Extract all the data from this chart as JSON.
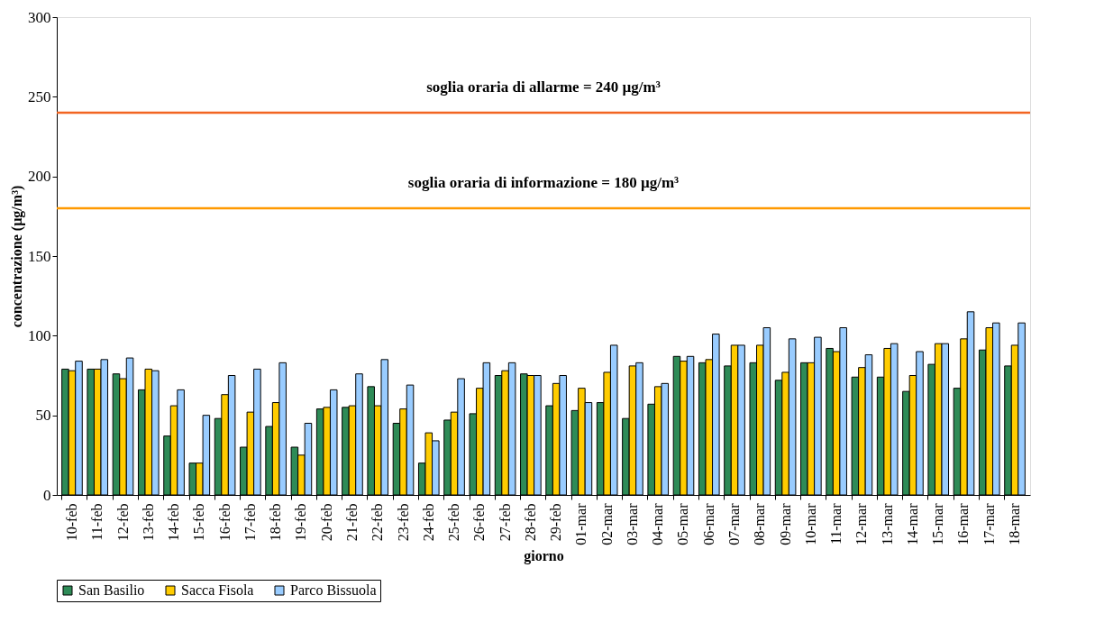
{
  "chart_data": {
    "type": "bar",
    "xlabel": "giorno",
    "ylabel": "concentrazione (µg/m³)",
    "categories": [
      "10-feb",
      "11-feb",
      "12-feb",
      "13-feb",
      "14-feb",
      "15-feb",
      "16-feb",
      "17-feb",
      "18-feb",
      "19-feb",
      "20-feb",
      "21-feb",
      "22-feb",
      "23-feb",
      "24-feb",
      "25-feb",
      "26-feb",
      "27-feb",
      "28-feb",
      "29-feb",
      "01-mar",
      "02-mar",
      "03-mar",
      "04-mar",
      "05-mar",
      "06-mar",
      "07-mar",
      "08-mar",
      "09-mar",
      "10-mar",
      "11-mar",
      "12-mar",
      "13-mar",
      "14-mar",
      "15-mar",
      "16-mar",
      "17-mar",
      "18-mar"
    ],
    "series": [
      {
        "name": "San Basilio",
        "color": "#2e8b57",
        "values": [
          79,
          79,
          76,
          66,
          37,
          20,
          48,
          30,
          43,
          30,
          54,
          55,
          68,
          45,
          20,
          47,
          51,
          75,
          76,
          56,
          53,
          58,
          48,
          57,
          87,
          83,
          81,
          83,
          72,
          83,
          92,
          74,
          74,
          65,
          82,
          67,
          91,
          81
        ]
      },
      {
        "name": "Sacca Fisola",
        "color": "#ffcc00",
        "values": [
          78,
          79,
          73,
          79,
          56,
          20,
          63,
          52,
          58,
          25,
          55,
          56,
          56,
          54,
          39,
          52,
          67,
          78,
          75,
          70,
          67,
          77,
          81,
          68,
          84,
          85,
          94,
          94,
          77,
          83,
          90,
          80,
          92,
          75,
          95,
          98,
          105,
          94
        ]
      },
      {
        "name": "Parco Bissuola",
        "color": "#99ccff",
        "values": [
          84,
          85,
          86,
          78,
          66,
          50,
          75,
          79,
          83,
          45,
          66,
          76,
          85,
          69,
          34,
          73,
          83,
          83,
          75,
          75,
          58,
          94,
          83,
          70,
          87,
          101,
          94,
          105,
          98,
          99,
          105,
          88,
          95,
          90,
          95,
          115,
          108,
          108
        ]
      }
    ],
    "ylim": [
      0,
      300
    ],
    "yticks": [
      0,
      50,
      100,
      150,
      200,
      250,
      300
    ],
    "grid": false,
    "legend": "bottom left",
    "ref_lines": [
      {
        "axis": "y",
        "value": 240,
        "label": "soglia oraria di allarme = 240 µg/m³",
        "color": "#f26522"
      },
      {
        "axis": "y",
        "value": 180,
        "label": "soglia oraria di informazione = 180 µg/m³",
        "color": "#ff9900"
      }
    ]
  }
}
